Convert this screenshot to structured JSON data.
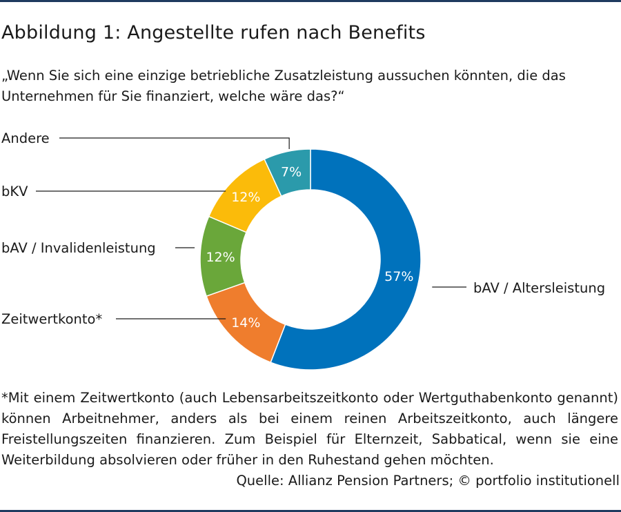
{
  "header": {
    "title": "Abbildung 1: Angestellte rufen nach Benefits",
    "subtitle": "„Wenn Sie sich eine einzige betriebliche Zusatzleistung aussuchen könnten, die das Unternehmen für Sie finanziert, welche wäre das?“"
  },
  "chart_data": {
    "type": "pie",
    "donut": true,
    "legend": "none",
    "slices": [
      {
        "name": "bAV / Altersleistung",
        "value": 57,
        "label": "57%",
        "color": "#0072bc"
      },
      {
        "name": "Zeitwertkonto*",
        "value": 14,
        "label": "14%",
        "color": "#ef7d2d"
      },
      {
        "name": "bAV / Invalidenleistung",
        "value": 12,
        "label": "12%",
        "color": "#6aa73a"
      },
      {
        "name": "bKV",
        "value": 12,
        "label": "12%",
        "color": "#fbbb0a"
      },
      {
        "name": "Andere",
        "value": 7,
        "label": "7%",
        "color": "#2b9aab"
      }
    ]
  },
  "footer": {
    "footnote": "*Mit einem Zeitwertkonto (auch Lebensarbeitszeitkonto oder Wertguthabenkonto genannt) können Arbeitnehmer, anders als bei einem reinen Arbeitszeitkonto, auch längere Freistellungszeiten finanzieren. Zum Beispiel für Elternzeit, Sabbatical, wenn sie eine Weiterbildung absolvieren oder früher in den Ruhestand gehen möchten.",
    "source": "Quelle: Allianz Pension Partners; © portfolio institutionell"
  }
}
